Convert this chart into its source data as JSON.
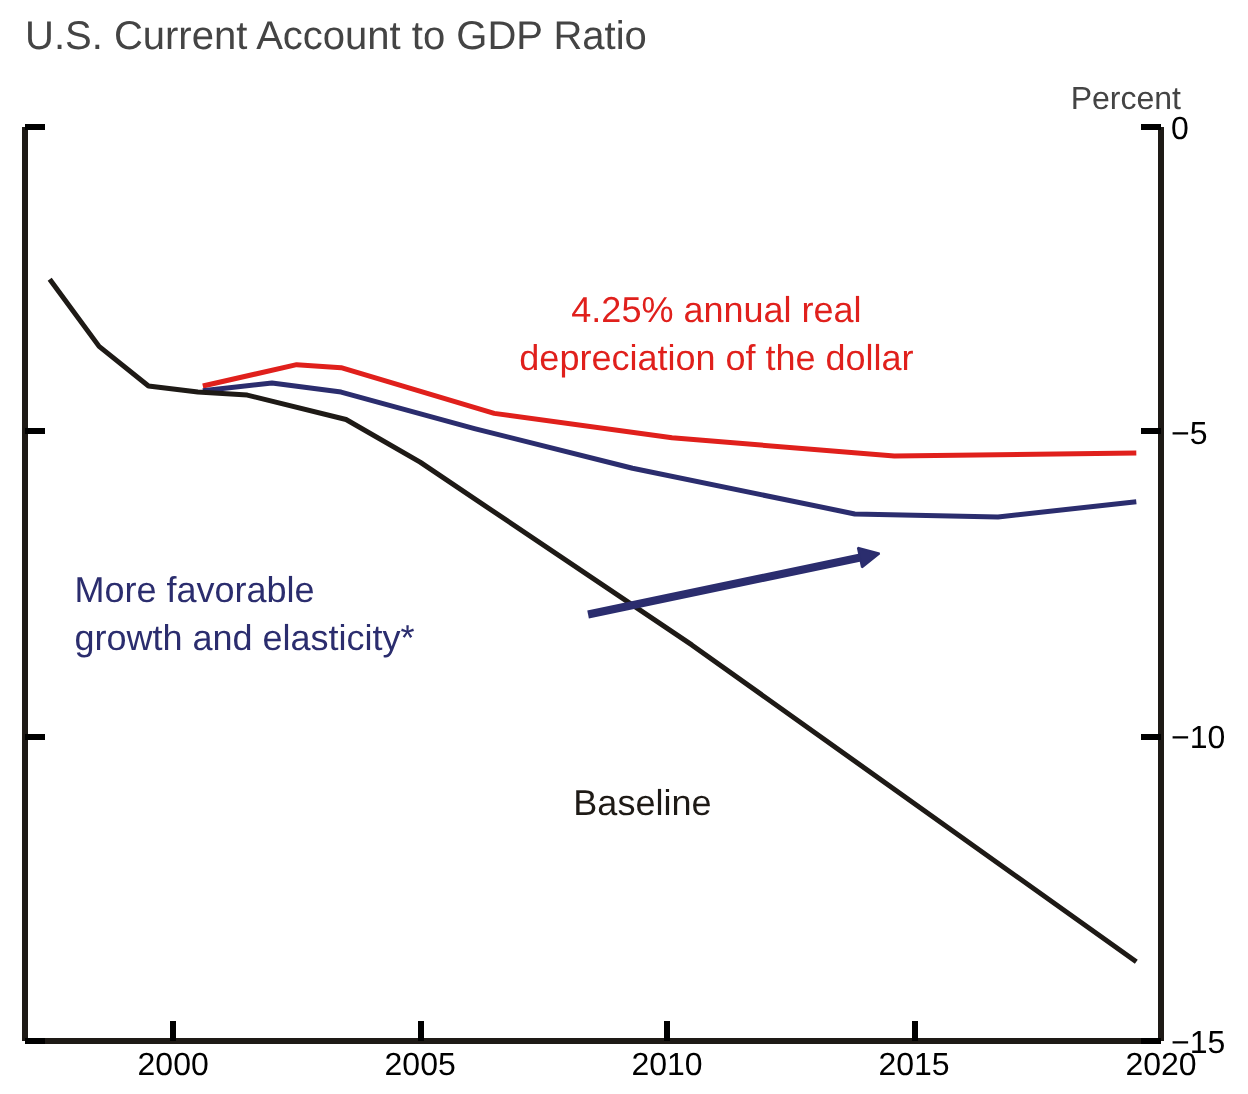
{
  "chart_data": {
    "type": "line",
    "title": "U.S. Current Account to GDP Ratio",
    "ylabel": "Percent",
    "xlim": [
      1997,
      2020
    ],
    "ylim": [
      -15,
      0
    ],
    "xticks": [
      2000,
      2005,
      2010,
      2015,
      2020
    ],
    "yticks": [
      0,
      -5,
      -10,
      -15
    ],
    "tick_labels": "xy",
    "grid": false,
    "marker": "none",
    "line_style": "solid",
    "series": [
      {
        "name": "4.25% annual real depreciation of the dollar",
        "color": "#e0201c",
        "x": [
          2000.6,
          2002.5,
          2003.4,
          2006.5,
          2010.1,
          2014.6,
          2019.5
        ],
        "values": [
          -4.25,
          -3.9,
          -3.95,
          -4.7,
          -5.1,
          -5.4,
          -5.35
        ]
      },
      {
        "name": "More favorable growth and elasticity*",
        "color": "#2b2d6e",
        "x": [
          2000.6,
          2002.0,
          2003.4,
          2006.1,
          2009.3,
          2013.8,
          2016.7,
          2019.5
        ],
        "values": [
          -4.33,
          -4.2,
          -4.35,
          -4.95,
          -5.6,
          -6.35,
          -6.4,
          -6.15
        ]
      },
      {
        "name": "Baseline",
        "color": "#1e1a16",
        "x": [
          1997.5,
          1998.5,
          1999.5,
          2000.5,
          2001.5,
          2003.5,
          2005.0,
          2010.5,
          2019.5
        ],
        "values": [
          -2.5,
          -3.6,
          -4.25,
          -4.35,
          -4.4,
          -4.8,
          -5.5,
          -8.5,
          -13.7
        ]
      }
    ]
  }
}
